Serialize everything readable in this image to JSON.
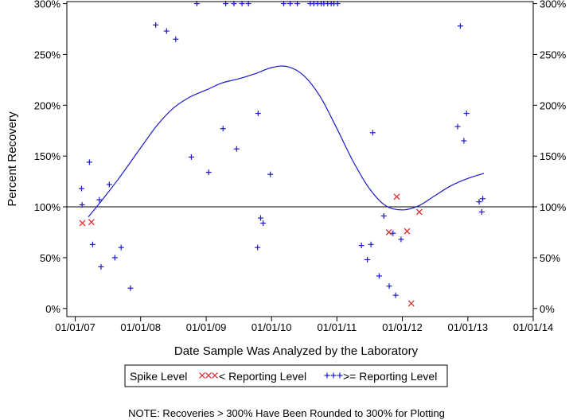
{
  "chart_data": {
    "type": "scatter",
    "title": "",
    "xlabel": "Date Sample Was Analyzed by the Laboratory",
    "ylabel": "Percent Recovery",
    "xlim": [
      "2006-11-15",
      "2014-01-01"
    ],
    "ylim": [
      -8,
      302
    ],
    "x_ticks": [
      "2007-01-01",
      "2008-01-01",
      "2009-01-01",
      "2010-01-01",
      "2011-01-01",
      "2012-01-01",
      "2013-01-01",
      "2014-01-01"
    ],
    "x_tick_labels": [
      "01/01/07",
      "01/01/08",
      "01/01/09",
      "01/01/10",
      "01/01/11",
      "01/01/12",
      "01/01/13",
      "01/01/14"
    ],
    "y_ticks": [
      0,
      50,
      100,
      150,
      200,
      250,
      300
    ],
    "y_tick_labels": [
      "0%",
      "50%",
      "100%",
      "150%",
      "200%",
      "250%",
      "300%"
    ],
    "reference_line": 100,
    "grid": false,
    "colors": {
      "below": "#dd2222",
      "above": "#1a1acc",
      "trend": "#1a1acc",
      "axis": "#000000"
    },
    "series": [
      {
        "name": "< Reporting Level",
        "marker": "x",
        "color": "#dd2222",
        "points": [
          {
            "x": "2007-02-10",
            "y": 84
          },
          {
            "x": "2007-04-01",
            "y": 85
          },
          {
            "x": "2011-10-18",
            "y": 75
          },
          {
            "x": "2011-12-01",
            "y": 110
          },
          {
            "x": "2012-01-28",
            "y": 76
          },
          {
            "x": "2012-02-20",
            "y": 5
          },
          {
            "x": "2012-04-05",
            "y": 95
          }
        ]
      },
      {
        "name": ">= Reporting Level",
        "marker": "+",
        "color": "#1a1acc",
        "points": [
          {
            "x": "2007-02-05",
            "y": 118
          },
          {
            "x": "2007-02-08",
            "y": 102
          },
          {
            "x": "2007-03-21",
            "y": 144
          },
          {
            "x": "2007-04-08",
            "y": 63
          },
          {
            "x": "2007-05-15",
            "y": 107
          },
          {
            "x": "2007-05-25",
            "y": 41
          },
          {
            "x": "2007-07-10",
            "y": 122
          },
          {
            "x": "2007-08-10",
            "y": 50
          },
          {
            "x": "2007-09-14",
            "y": 60
          },
          {
            "x": "2007-11-05",
            "y": 20
          },
          {
            "x": "2008-03-25",
            "y": 279
          },
          {
            "x": "2008-05-25",
            "y": 273
          },
          {
            "x": "2008-07-15",
            "y": 265
          },
          {
            "x": "2008-10-10",
            "y": 149
          },
          {
            "x": "2008-11-10",
            "y": 300
          },
          {
            "x": "2009-01-15",
            "y": 134
          },
          {
            "x": "2009-04-05",
            "y": 177
          },
          {
            "x": "2009-04-20",
            "y": 300
          },
          {
            "x": "2009-06-05",
            "y": 300
          },
          {
            "x": "2009-06-20",
            "y": 157
          },
          {
            "x": "2009-07-20",
            "y": 300
          },
          {
            "x": "2009-08-25",
            "y": 300
          },
          {
            "x": "2009-10-15",
            "y": 60
          },
          {
            "x": "2009-10-18",
            "y": 192
          },
          {
            "x": "2009-11-01",
            "y": 89
          },
          {
            "x": "2009-11-15",
            "y": 84
          },
          {
            "x": "2009-12-25",
            "y": 132
          },
          {
            "x": "2010-03-10",
            "y": 300
          },
          {
            "x": "2010-04-15",
            "y": 300
          },
          {
            "x": "2010-05-25",
            "y": 300
          },
          {
            "x": "2010-08-05",
            "y": 300
          },
          {
            "x": "2010-08-25",
            "y": 300
          },
          {
            "x": "2010-09-15",
            "y": 300
          },
          {
            "x": "2010-10-05",
            "y": 300
          },
          {
            "x": "2010-10-20",
            "y": 300
          },
          {
            "x": "2010-11-10",
            "y": 300
          },
          {
            "x": "2010-11-30",
            "y": 300
          },
          {
            "x": "2010-12-15",
            "y": 300
          },
          {
            "x": "2011-01-05",
            "y": 300
          },
          {
            "x": "2011-05-18",
            "y": 62
          },
          {
            "x": "2011-06-20",
            "y": 48
          },
          {
            "x": "2011-07-10",
            "y": 63
          },
          {
            "x": "2011-07-20",
            "y": 173
          },
          {
            "x": "2011-08-25",
            "y": 32
          },
          {
            "x": "2011-09-20",
            "y": 91
          },
          {
            "x": "2011-10-20",
            "y": 22
          },
          {
            "x": "2011-11-10",
            "y": 74
          },
          {
            "x": "2011-11-25",
            "y": 13
          },
          {
            "x": "2011-12-25",
            "y": 68
          },
          {
            "x": "2012-11-05",
            "y": 179
          },
          {
            "x": "2012-11-20",
            "y": 278
          },
          {
            "x": "2012-12-10",
            "y": 165
          },
          {
            "x": "2012-12-25",
            "y": 192
          },
          {
            "x": "2013-03-05",
            "y": 105
          },
          {
            "x": "2013-03-20",
            "y": 95
          },
          {
            "x": "2013-03-25",
            "y": 108
          }
        ]
      }
    ],
    "trend_line": {
      "color": "#1a1acc",
      "points": [
        {
          "x": "2007-03-15",
          "y": 90
        },
        {
          "x": "2007-06-01",
          "y": 107
        },
        {
          "x": "2007-09-01",
          "y": 128
        },
        {
          "x": "2008-01-01",
          "y": 158
        },
        {
          "x": "2008-04-01",
          "y": 180
        },
        {
          "x": "2008-07-01",
          "y": 197
        },
        {
          "x": "2008-10-01",
          "y": 208
        },
        {
          "x": "2009-01-01",
          "y": 215
        },
        {
          "x": "2009-04-01",
          "y": 222
        },
        {
          "x": "2009-07-01",
          "y": 226
        },
        {
          "x": "2009-10-01",
          "y": 231
        },
        {
          "x": "2010-01-01",
          "y": 237
        },
        {
          "x": "2010-04-01",
          "y": 238
        },
        {
          "x": "2010-07-01",
          "y": 229
        },
        {
          "x": "2010-10-01",
          "y": 208
        },
        {
          "x": "2011-01-01",
          "y": 177
        },
        {
          "x": "2011-04-01",
          "y": 145
        },
        {
          "x": "2011-07-01",
          "y": 118
        },
        {
          "x": "2011-10-01",
          "y": 101
        },
        {
          "x": "2012-01-01",
          "y": 97
        },
        {
          "x": "2012-04-01",
          "y": 101
        },
        {
          "x": "2012-07-01",
          "y": 111
        },
        {
          "x": "2012-10-01",
          "y": 121
        },
        {
          "x": "2013-01-01",
          "y": 128
        },
        {
          "x": "2013-04-01",
          "y": 133
        }
      ]
    }
  },
  "legend": {
    "title": "Spike Level",
    "below_label": "< Reporting Level",
    "above_label": ">= Reporting Level"
  },
  "note": "NOTE: Recoveries > 300% Have Been Rounded to 300% for Plotting"
}
